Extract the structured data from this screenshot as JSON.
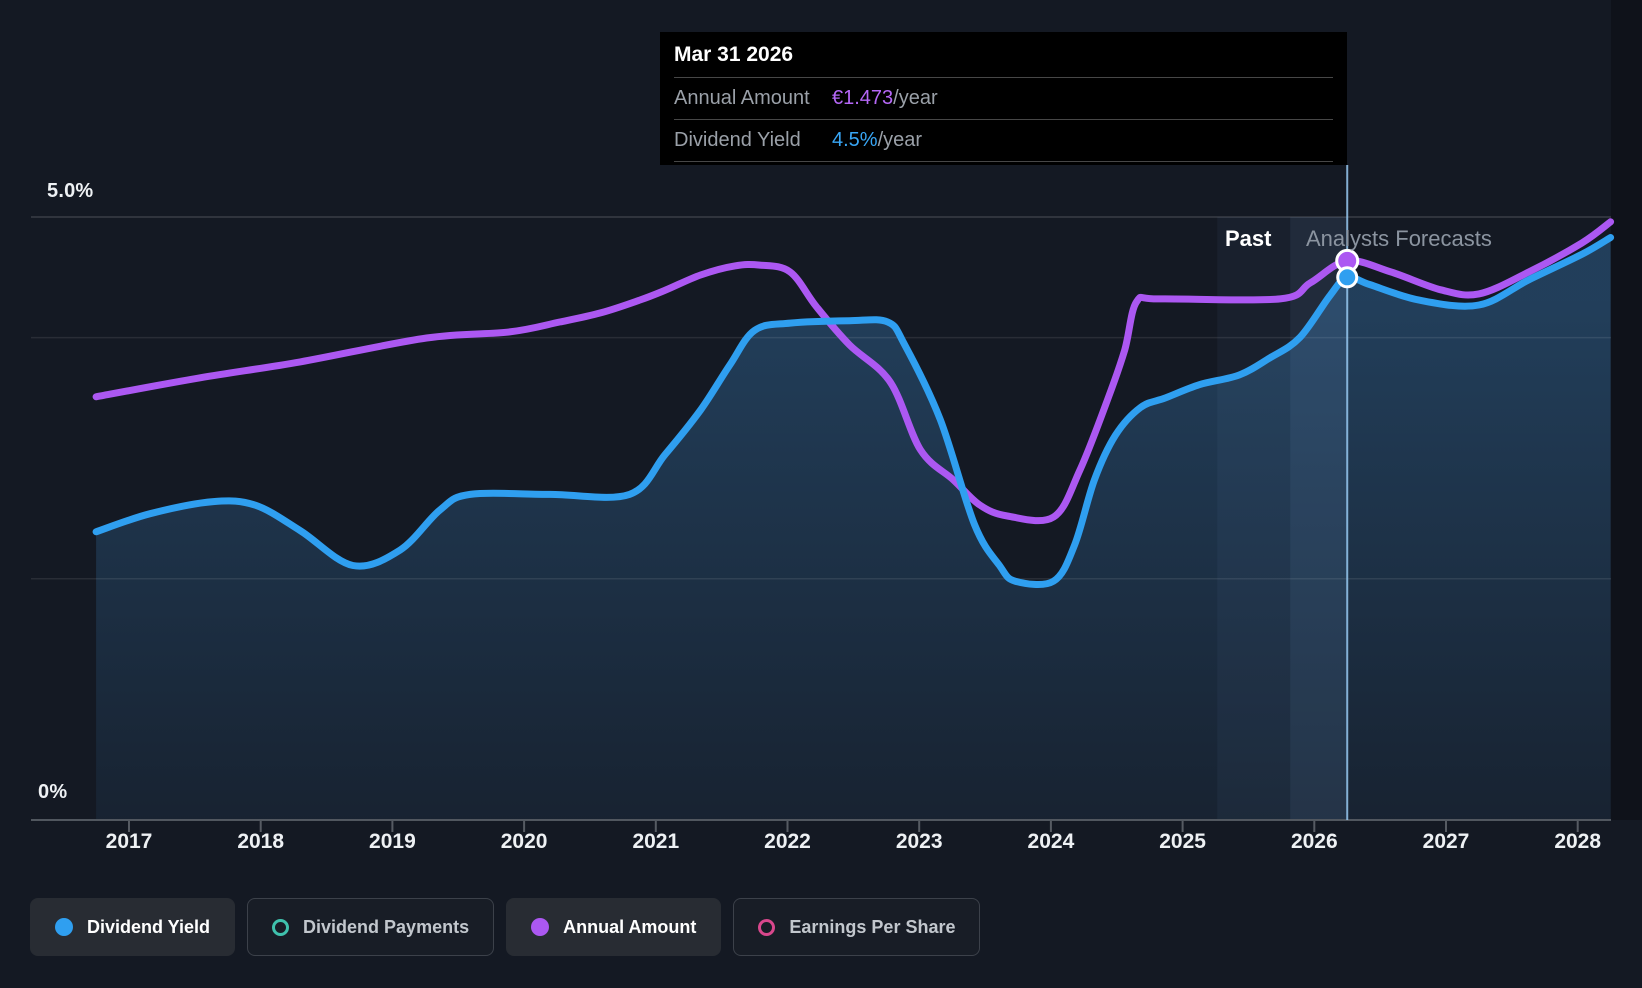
{
  "tooltip": {
    "date": "Mar 31 2026",
    "rows": [
      {
        "label": "Annual Amount",
        "value": "€1.473",
        "suffix": "/year",
        "color": "#b467f5"
      },
      {
        "label": "Dividend Yield",
        "value": "4.5%",
        "suffix": "/year",
        "color": "#38a6f5"
      }
    ]
  },
  "region_labels": {
    "past": "Past",
    "forecast": "Analysts Forecasts"
  },
  "y_axis": {
    "top": "5.0%",
    "bottom": "0%"
  },
  "x_axis": {
    "years": [
      "2017",
      "2018",
      "2019",
      "2020",
      "2021",
      "2022",
      "2023",
      "2024",
      "2025",
      "2026",
      "2027",
      "2028"
    ]
  },
  "legend": [
    {
      "label": "Dividend Yield",
      "style": "filled",
      "color": "#2f9ff0",
      "active": true
    },
    {
      "label": "Dividend Payments",
      "style": "hollow",
      "color": "#3fc1ad",
      "active": false
    },
    {
      "label": "Annual Amount",
      "style": "filled",
      "color": "#ac58f2",
      "active": true
    },
    {
      "label": "Earnings Per Share",
      "style": "hollow",
      "color": "#d8478c",
      "active": false
    }
  ],
  "chart_data": {
    "type": "line",
    "title": "Dividend Yield and Annual Amount — past and analysts forecasts",
    "x_range": [
      2016.75,
      2028.25
    ],
    "x_ticks": [
      2017,
      2018,
      2019,
      2020,
      2021,
      2022,
      2023,
      2024,
      2025,
      2026,
      2027,
      2028
    ],
    "y_axis_percent": {
      "min": 0,
      "max": 5,
      "gridlines_pct": [
        5.0,
        4.0,
        2.0,
        0.0
      ],
      "labels": [
        "5.0%",
        "0%"
      ]
    },
    "highlight": {
      "x": 2026.25,
      "date": "Mar 31 2026",
      "dividend_yield_pct": 4.5,
      "annual_amount_eur": 1.473
    },
    "forecast_boundary_x": 2026.25,
    "legend_position": "bottom",
    "series": [
      {
        "name": "Dividend Yield",
        "unit": "%",
        "color": "#2f9ff0",
        "area": true,
        "points": [
          [
            2016.75,
            2.39
          ],
          [
            2017.16,
            2.54
          ],
          [
            2017.64,
            2.64
          ],
          [
            2017.96,
            2.61
          ],
          [
            2018.3,
            2.4
          ],
          [
            2018.7,
            2.11
          ],
          [
            2019.06,
            2.24
          ],
          [
            2019.36,
            2.57
          ],
          [
            2019.59,
            2.7
          ],
          [
            2020.2,
            2.7
          ],
          [
            2020.8,
            2.7
          ],
          [
            2021.07,
            3.03
          ],
          [
            2021.34,
            3.4
          ],
          [
            2021.56,
            3.77
          ],
          [
            2021.75,
            4.06
          ],
          [
            2022.02,
            4.12
          ],
          [
            2022.47,
            4.14
          ],
          [
            2022.76,
            4.13
          ],
          [
            2022.89,
            3.94
          ],
          [
            2023.16,
            3.32
          ],
          [
            2023.42,
            2.45
          ],
          [
            2023.61,
            2.11
          ],
          [
            2023.73,
            1.98
          ],
          [
            2024.02,
            1.98
          ],
          [
            2024.18,
            2.28
          ],
          [
            2024.33,
            2.82
          ],
          [
            2024.49,
            3.19
          ],
          [
            2024.68,
            3.42
          ],
          [
            2024.87,
            3.5
          ],
          [
            2025.13,
            3.61
          ],
          [
            2025.43,
            3.69
          ],
          [
            2025.66,
            3.83
          ],
          [
            2025.89,
            4.0
          ],
          [
            2026.12,
            4.35
          ],
          [
            2026.25,
            4.5
          ],
          [
            2026.42,
            4.44
          ],
          [
            2026.8,
            4.31
          ],
          [
            2027.25,
            4.27
          ],
          [
            2027.63,
            4.48
          ],
          [
            2028.03,
            4.69
          ],
          [
            2028.25,
            4.83
          ]
        ]
      },
      {
        "name": "Annual Amount",
        "unit": "EUR/year",
        "color": "#ac58f2",
        "area": false,
        "points": [
          [
            2016.75,
            1.115
          ],
          [
            2017.54,
            1.165
          ],
          [
            2018.3,
            1.207
          ],
          [
            2019.26,
            1.27
          ],
          [
            2019.89,
            1.286
          ],
          [
            2020.27,
            1.312
          ],
          [
            2020.58,
            1.336
          ],
          [
            2020.88,
            1.37
          ],
          [
            2021.08,
            1.397
          ],
          [
            2021.34,
            1.436
          ],
          [
            2021.6,
            1.46
          ],
          [
            2021.79,
            1.462
          ],
          [
            2022.02,
            1.444
          ],
          [
            2022.22,
            1.352
          ],
          [
            2022.47,
            1.252
          ],
          [
            2022.78,
            1.154
          ],
          [
            2023.01,
            0.975
          ],
          [
            2023.26,
            0.896
          ],
          [
            2023.46,
            0.83
          ],
          [
            2023.67,
            0.801
          ],
          [
            2024.02,
            0.798
          ],
          [
            2024.22,
            0.922
          ],
          [
            2024.43,
            1.107
          ],
          [
            2024.56,
            1.238
          ],
          [
            2024.65,
            1.365
          ],
          [
            2024.83,
            1.373
          ],
          [
            2025.74,
            1.373
          ],
          [
            2025.97,
            1.415
          ],
          [
            2026.25,
            1.473
          ],
          [
            2026.58,
            1.444
          ],
          [
            2026.96,
            1.397
          ],
          [
            2027.25,
            1.386
          ],
          [
            2027.63,
            1.444
          ],
          [
            2028.03,
            1.52
          ],
          [
            2028.25,
            1.576
          ]
        ]
      }
    ]
  }
}
